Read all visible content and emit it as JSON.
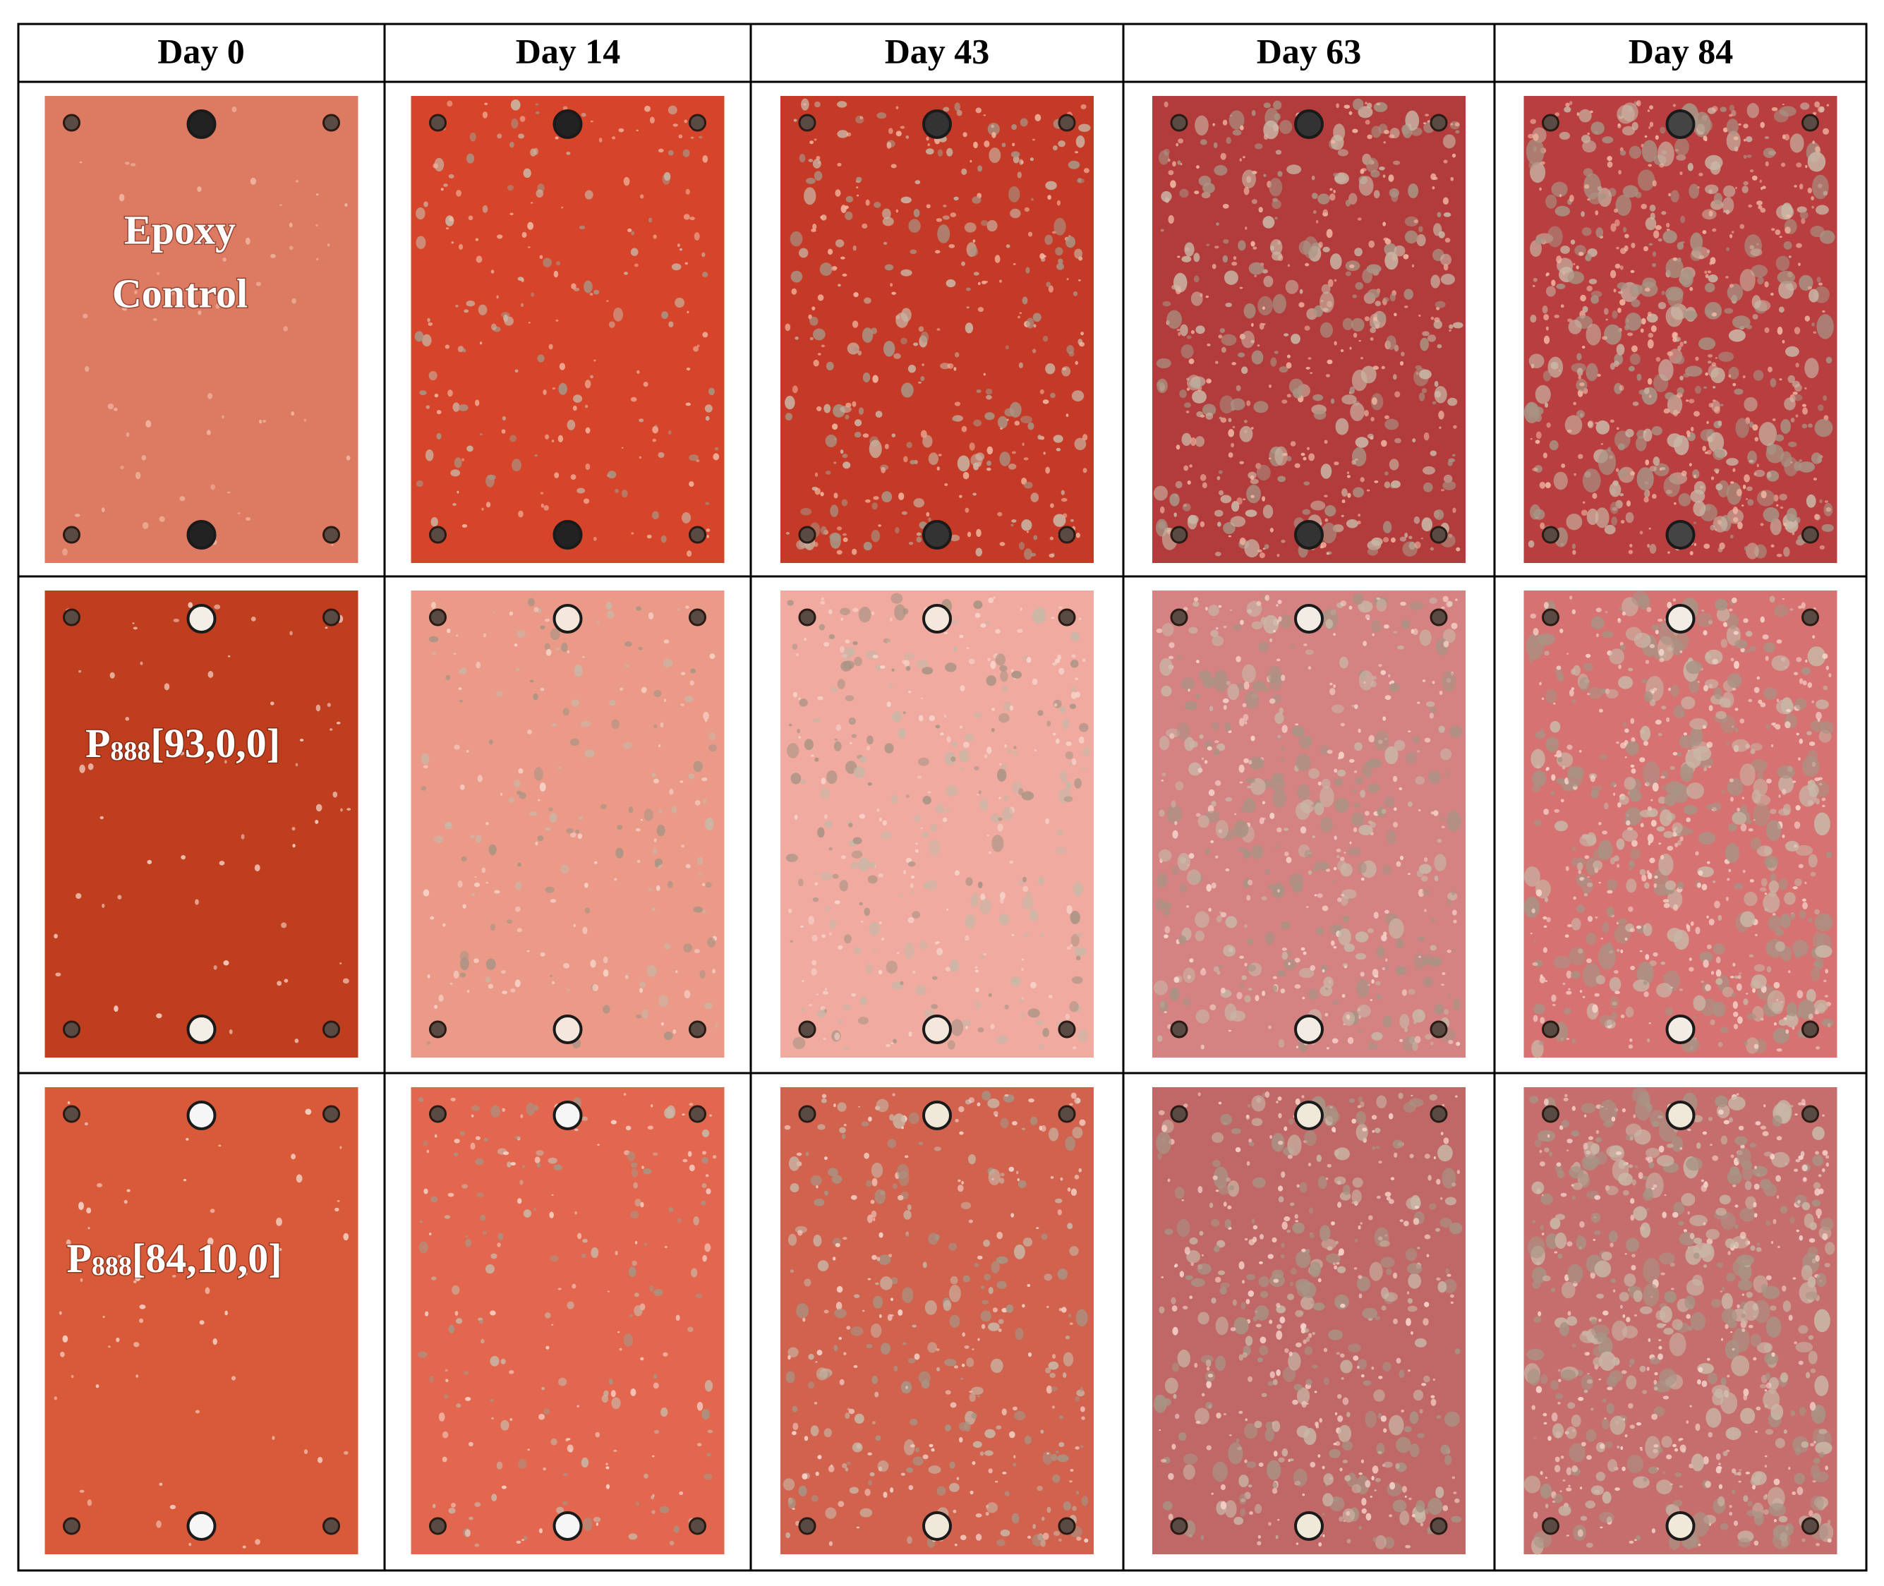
{
  "header": {
    "columns": [
      "Day 0",
      "Day 14",
      "Day 43",
      "Day 63",
      "Day 84"
    ]
  },
  "rows": [
    {
      "label": {
        "lines": [
          "Epoxy",
          "Control"
        ]
      }
    },
    {
      "label": {
        "prefix": "P",
        "subscript": "888",
        "suffix": "[93,0,0]"
      }
    },
    {
      "label": {
        "prefix": "P",
        "subscript": "888",
        "suffix": "[84,10,0]"
      }
    }
  ]
}
